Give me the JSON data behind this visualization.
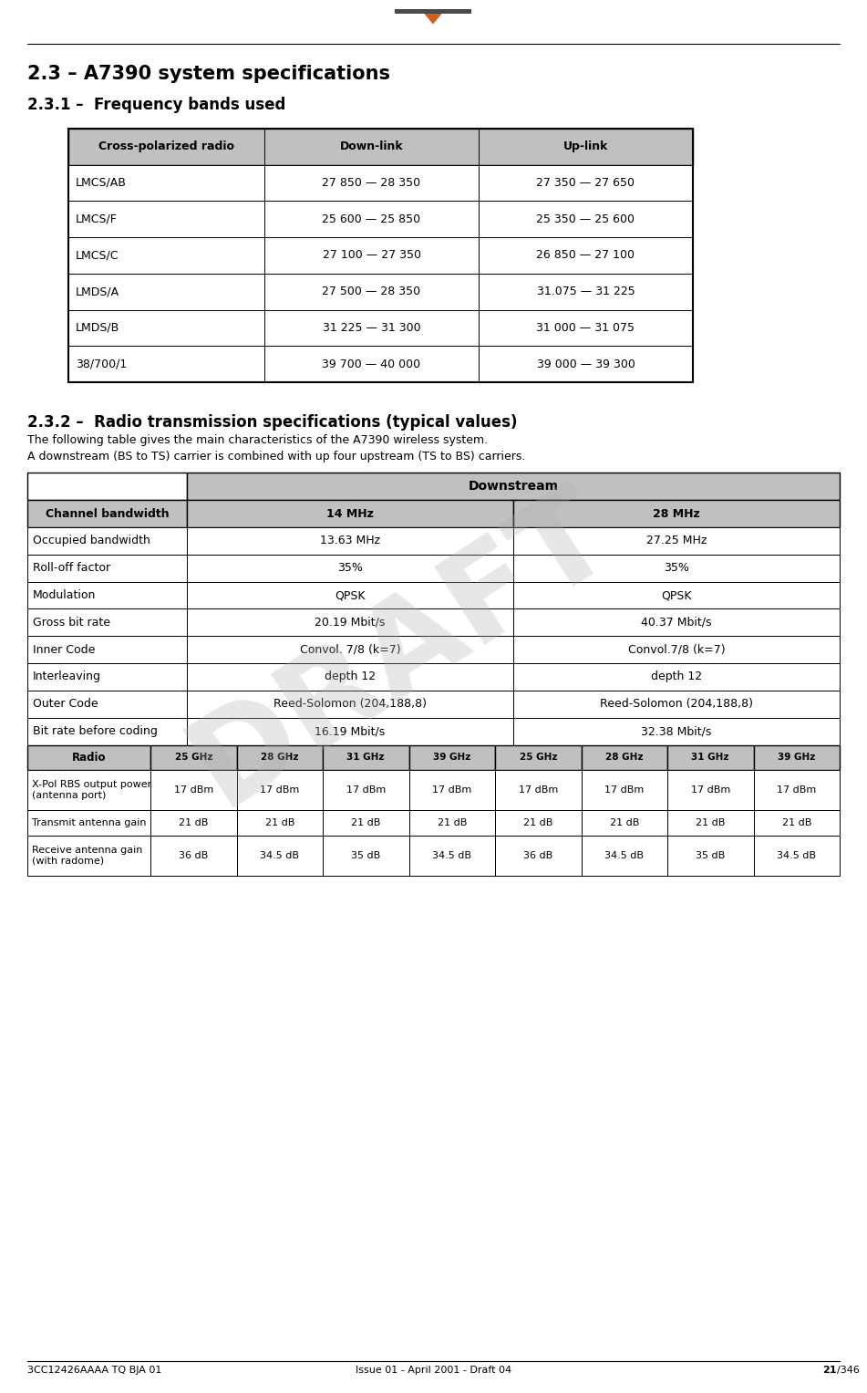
{
  "title1": "2.3 – A7390 system specifications",
  "title2": "2.3.1 –  Frequency bands used",
  "title3": "2.3.2 –  Radio transmission specifications (typical values)",
  "desc1": "The following table gives the main characteristics of the A7390 wireless system.",
  "desc2": "A downstream (BS to TS) carrier is combined with up four upstream (TS to BS) carriers.",
  "freq_table_headers": [
    "Cross-polarized radio",
    "Down-link",
    "Up-link"
  ],
  "freq_table_rows": [
    [
      "LMCS/AB",
      "27 850 — 28 350",
      "27 350 — 27 650"
    ],
    [
      "LMCS/F",
      "25 600 — 25 850",
      "25 350 — 25 600"
    ],
    [
      "LMCS/C",
      "27 100 — 27 350",
      "26 850 — 27 100"
    ],
    [
      "LMDS/A",
      "27 500 — 28 350",
      "31.075 — 31 225"
    ],
    [
      "LMDS/B",
      "31 225 — 31 300",
      "31 000 — 31 075"
    ],
    [
      "38/700/1",
      "39 700 — 40 000",
      "39 000 — 39 300"
    ]
  ],
  "spec_rows": [
    [
      "Occupied bandwidth",
      "13.63 MHz",
      "27.25 MHz"
    ],
    [
      "Roll-off factor",
      "35%",
      "35%"
    ],
    [
      "Modulation",
      "QPSK",
      "QPSK"
    ],
    [
      "Gross bit rate",
      "20.19 Mbit/s",
      "40.37 Mbit/s"
    ],
    [
      "Inner Code",
      "Convol. 7/8 (k=7)",
      "Convol.7/8 (k=7)"
    ],
    [
      "Interleaving",
      "depth 12",
      "depth 12"
    ],
    [
      "Outer Code",
      "Reed-Solomon (204,188,8)",
      "Reed-Solomon (204,188,8)"
    ],
    [
      "Bit rate before coding",
      "16.19 Mbit/s",
      "32.38 Mbit/s"
    ]
  ],
  "radio_header": [
    "Radio",
    "25 GHz",
    "28 GHz",
    "31 GHz",
    "39 GHz",
    "25 GHz",
    "28 GHz",
    "31 GHz",
    "39 GHz"
  ],
  "radio_rows": [
    [
      "X-Pol RBS output power\n(antenna port)",
      "17 dBm",
      "17 dBm",
      "17 dBm",
      "17 dBm",
      "17 dBm",
      "17 dBm",
      "17 dBm",
      "17 dBm"
    ],
    [
      "Transmit antenna gain",
      "21 dB",
      "21 dB",
      "21 dB",
      "21 dB",
      "21 dB",
      "21 dB",
      "21 dB",
      "21 dB"
    ],
    [
      "Receive antenna gain\n(with radome)",
      "36 dB",
      "34.5 dB",
      "35 dB",
      "34.5 dB",
      "36 dB",
      "34.5 dB",
      "35 dB",
      "34.5 dB"
    ]
  ],
  "footer_left": "3CC12426AAAA TQ BJA 01",
  "footer_center": "Issue 01 - April 2001 - Draft 04",
  "footer_right_bold": "21",
  "footer_right_normal": "/346",
  "header_bg": "#c0c0c0",
  "table_border": "#000000",
  "draft_color": "#b0b0b0",
  "alcatel_bg": "#4a4a4a",
  "alcatel_arrow": "#d2601a"
}
